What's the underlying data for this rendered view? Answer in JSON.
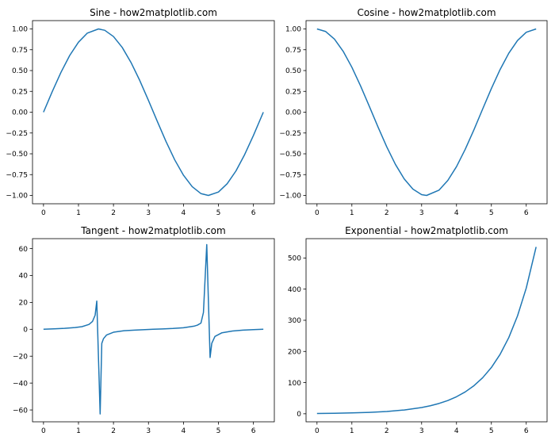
{
  "figure": {
    "background": "#ffffff",
    "line_color": "#1f77b4"
  },
  "chart_data": [
    {
      "type": "line",
      "title": "Sine - how2matplotlib.com",
      "xlabel": "",
      "ylabel": "",
      "xlim": [
        -0.314,
        6.597
      ],
      "ylim": [
        -1.1,
        1.1
      ],
      "xticks": [
        0,
        1,
        2,
        3,
        4,
        5,
        6
      ],
      "yticks": [
        -1.0,
        -0.75,
        -0.5,
        -0.25,
        0.0,
        0.25,
        0.5,
        0.75,
        1.0
      ],
      "ytick_labels": [
        "−1.00",
        "−0.75",
        "−0.50",
        "−0.25",
        "0.00",
        "0.25",
        "0.50",
        "0.75",
        "1.00"
      ],
      "series": [
        {
          "x": [
            0,
            0.25,
            0.5,
            0.75,
            1.0,
            1.25,
            1.571,
            1.75,
            2.0,
            2.25,
            2.5,
            2.75,
            3.0,
            3.25,
            3.5,
            3.75,
            4.0,
            4.25,
            4.5,
            4.712,
            5.0,
            5.25,
            5.5,
            5.75,
            6.0,
            6.283
          ],
          "y": [
            0.0,
            0.247,
            0.479,
            0.682,
            0.841,
            0.949,
            1.0,
            0.984,
            0.909,
            0.778,
            0.598,
            0.382,
            0.141,
            -0.108,
            -0.351,
            -0.572,
            -0.757,
            -0.895,
            -0.978,
            -1.0,
            -0.959,
            -0.859,
            -0.706,
            -0.508,
            -0.279,
            0.0
          ]
        }
      ]
    },
    {
      "type": "line",
      "title": "Cosine - how2matplotlib.com",
      "xlabel": "",
      "ylabel": "",
      "xlim": [
        -0.314,
        6.597
      ],
      "ylim": [
        -1.1,
        1.1
      ],
      "xticks": [
        0,
        1,
        2,
        3,
        4,
        5,
        6
      ],
      "yticks": [
        -1.0,
        -0.75,
        -0.5,
        -0.25,
        0.0,
        0.25,
        0.5,
        0.75,
        1.0
      ],
      "ytick_labels": [
        "−1.00",
        "−0.75",
        "−0.50",
        "−0.25",
        "0.00",
        "0.25",
        "0.50",
        "0.75",
        "1.00"
      ],
      "series": [
        {
          "x": [
            0,
            0.25,
            0.5,
            0.75,
            1.0,
            1.25,
            1.5,
            1.75,
            2.0,
            2.25,
            2.5,
            2.75,
            3.0,
            3.142,
            3.5,
            3.75,
            4.0,
            4.25,
            4.5,
            4.75,
            5.0,
            5.25,
            5.5,
            5.75,
            6.0,
            6.283
          ],
          "y": [
            1.0,
            0.969,
            0.878,
            0.732,
            0.54,
            0.315,
            0.071,
            -0.178,
            -0.416,
            -0.628,
            -0.801,
            -0.924,
            -0.99,
            -1.0,
            -0.936,
            -0.82,
            -0.654,
            -0.446,
            -0.211,
            0.038,
            0.284,
            0.512,
            0.709,
            0.861,
            0.96,
            1.0
          ]
        }
      ]
    },
    {
      "type": "line",
      "title": "Tangent - how2matplotlib.com",
      "xlabel": "",
      "ylabel": "",
      "xlim": [
        -0.314,
        6.597
      ],
      "ylim": [
        -68.8,
        67.4
      ],
      "xticks": [
        0,
        1,
        2,
        3,
        4,
        5,
        6
      ],
      "yticks": [
        -60,
        -40,
        -20,
        0,
        20,
        40,
        60
      ],
      "ytick_labels": [
        "−60",
        "−40",
        "−20",
        "0",
        "20",
        "40",
        "60"
      ],
      "series": [
        {
          "x": [
            0,
            0.3,
            0.6,
            0.9,
            1.1,
            1.3,
            1.4,
            1.476,
            1.523,
            1.619,
            1.666,
            1.714,
            1.8,
            2.0,
            2.3,
            2.6,
            2.9,
            3.14,
            3.4,
            3.7,
            4.0,
            4.3,
            4.4,
            4.5,
            4.571,
            4.666,
            4.761,
            4.809,
            4.9,
            5.1,
            5.4,
            5.7,
            6.0,
            6.283
          ],
          "y": [
            0.0,
            0.31,
            0.68,
            1.26,
            1.96,
            3.6,
            5.8,
            10.5,
            21.0,
            -63.0,
            -10.5,
            -7.0,
            -4.3,
            -2.2,
            -1.1,
            -0.6,
            -0.24,
            0.0,
            0.26,
            0.6,
            1.16,
            2.3,
            3.1,
            4.6,
            12.5,
            63.0,
            -21.0,
            -10.5,
            -5.3,
            -2.6,
            -1.3,
            -0.65,
            -0.29,
            0.0
          ]
        }
      ]
    },
    {
      "type": "line",
      "title": "Exponential - how2matplotlib.com",
      "xlabel": "",
      "ylabel": "",
      "xlim": [
        -0.314,
        6.597
      ],
      "ylim": [
        -25.8,
        562.0
      ],
      "xticks": [
        0,
        1,
        2,
        3,
        4,
        5,
        6
      ],
      "yticks": [
        0,
        100,
        200,
        300,
        400,
        500
      ],
      "ytick_labels": [
        "0",
        "100",
        "200",
        "300",
        "400",
        "500"
      ],
      "series": [
        {
          "x": [
            0,
            0.5,
            1.0,
            1.5,
            2.0,
            2.5,
            3.0,
            3.25,
            3.5,
            3.75,
            4.0,
            4.25,
            4.5,
            4.75,
            5.0,
            5.25,
            5.5,
            5.75,
            6.0,
            6.283
          ],
          "y": [
            1.0,
            1.65,
            2.72,
            4.48,
            7.39,
            12.2,
            20.1,
            25.8,
            33.1,
            42.5,
            54.6,
            70.1,
            90.0,
            115.6,
            148.4,
            190.6,
            244.7,
            314.2,
            403.4,
            535.5
          ]
        }
      ]
    }
  ]
}
